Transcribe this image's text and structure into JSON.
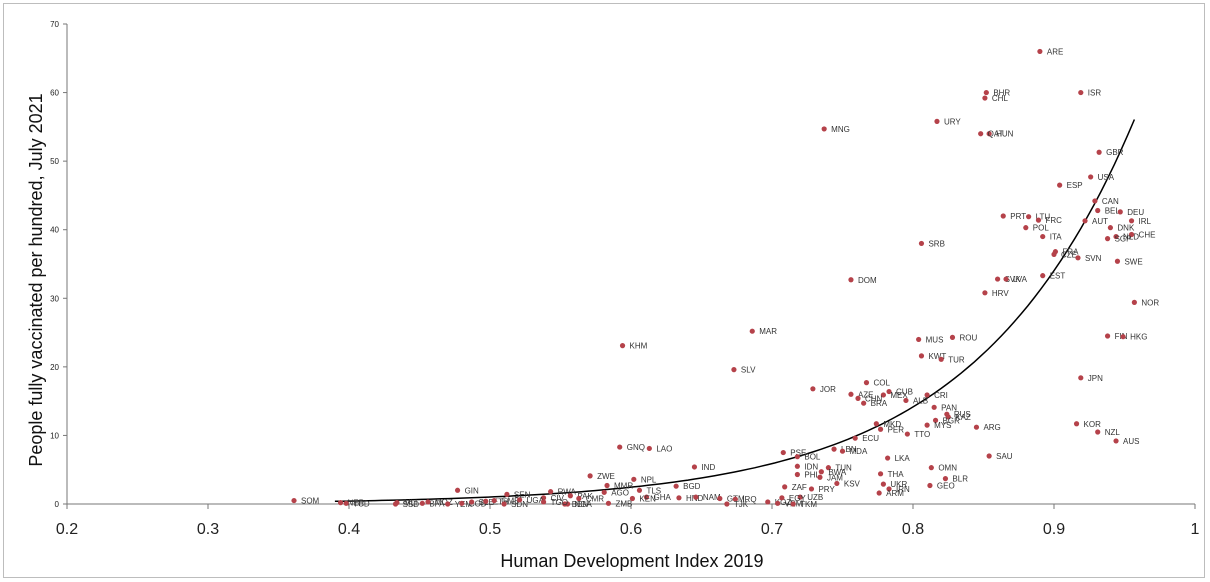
{
  "chart_data": {
    "type": "scatter",
    "title": "",
    "xlabel": "Human Development Index 2019",
    "ylabel": "People fully vaccinated per hundred, July 2021",
    "xlim": [
      0.2,
      1
    ],
    "ylim": [
      0,
      70
    ],
    "x_ticks": [
      "0.2",
      "0.3",
      "0.4",
      "0.5",
      "0.6",
      "0.7",
      "0.8",
      "0.9",
      "1"
    ],
    "y_ticks": [
      "0",
      "10",
      "20",
      "30",
      "40",
      "50",
      "60",
      "70"
    ],
    "grid": false,
    "legend": "none",
    "marker_color": "#b5424a",
    "trendline": {
      "type": "exponential",
      "a": 0.0127,
      "b": 8.77,
      "x_range": [
        0.39,
        0.957
      ]
    },
    "points": [
      {
        "label": "ARE",
        "x": 0.89,
        "y": 66.0
      },
      {
        "label": "BHR",
        "x": 0.852,
        "y": 60.0
      },
      {
        "label": "ISR",
        "x": 0.919,
        "y": 60.0
      },
      {
        "label": "CHL",
        "x": 0.851,
        "y": 59.2
      },
      {
        "label": "URY",
        "x": 0.817,
        "y": 55.8
      },
      {
        "label": "MNG",
        "x": 0.737,
        "y": 54.7
      },
      {
        "label": "HUN",
        "x": 0.854,
        "y": 54.0
      },
      {
        "label": "QAT",
        "x": 0.848,
        "y": 54.0
      },
      {
        "label": "GBR",
        "x": 0.932,
        "y": 51.3
      },
      {
        "label": "USA",
        "x": 0.926,
        "y": 47.7
      },
      {
        "label": "ESP",
        "x": 0.904,
        "y": 46.5
      },
      {
        "label": "CAN",
        "x": 0.929,
        "y": 44.2
      },
      {
        "label": "BEL",
        "x": 0.931,
        "y": 42.8
      },
      {
        "label": "DEU",
        "x": 0.947,
        "y": 42.6
      },
      {
        "label": "PRT",
        "x": 0.864,
        "y": 42.0
      },
      {
        "label": "LTU",
        "x": 0.882,
        "y": 41.9
      },
      {
        "label": "FRC",
        "x": 0.889,
        "y": 41.4
      },
      {
        "label": "AUT",
        "x": 0.922,
        "y": 41.3
      },
      {
        "label": "IRL",
        "x": 0.955,
        "y": 41.3
      },
      {
        "label": "POL",
        "x": 0.88,
        "y": 40.3
      },
      {
        "label": "DNK",
        "x": 0.94,
        "y": 40.3
      },
      {
        "label": "ITA",
        "x": 0.892,
        "y": 39.0
      },
      {
        "label": "NLD",
        "x": 0.944,
        "y": 39.0
      },
      {
        "label": "CHE",
        "x": 0.955,
        "y": 39.3
      },
      {
        "label": "SGP",
        "x": 0.938,
        "y": 38.7
      },
      {
        "label": "SRB",
        "x": 0.806,
        "y": 38.0
      },
      {
        "label": "FRA",
        "x": 0.901,
        "y": 36.8
      },
      {
        "label": "CZE",
        "x": 0.9,
        "y": 36.4
      },
      {
        "label": "SVN",
        "x": 0.917,
        "y": 35.9
      },
      {
        "label": "SWE",
        "x": 0.945,
        "y": 35.4
      },
      {
        "label": "EST",
        "x": 0.892,
        "y": 33.3
      },
      {
        "label": "SVK",
        "x": 0.86,
        "y": 32.8
      },
      {
        "label": "LVA",
        "x": 0.866,
        "y": 32.8
      },
      {
        "label": "DOM",
        "x": 0.756,
        "y": 32.7
      },
      {
        "label": "HRV",
        "x": 0.851,
        "y": 30.8
      },
      {
        "label": "NOR",
        "x": 0.957,
        "y": 29.4
      },
      {
        "label": "MAR",
        "x": 0.686,
        "y": 25.2
      },
      {
        "label": "ROU",
        "x": 0.828,
        "y": 24.3
      },
      {
        "label": "MUS",
        "x": 0.804,
        "y": 24.0
      },
      {
        "label": "FIN",
        "x": 0.938,
        "y": 24.5
      },
      {
        "label": "HKG",
        "x": 0.949,
        "y": 24.4
      },
      {
        "label": "KHM",
        "x": 0.594,
        "y": 23.1
      },
      {
        "label": "KWT",
        "x": 0.806,
        "y": 21.6
      },
      {
        "label": "TUR",
        "x": 0.82,
        "y": 21.1
      },
      {
        "label": "SLV",
        "x": 0.673,
        "y": 19.6
      },
      {
        "label": "JPN",
        "x": 0.919,
        "y": 18.4
      },
      {
        "label": "COL",
        "x": 0.767,
        "y": 17.7
      },
      {
        "label": "JOR",
        "x": 0.729,
        "y": 16.8
      },
      {
        "label": "CUB",
        "x": 0.783,
        "y": 16.4
      },
      {
        "label": "AZE",
        "x": 0.756,
        "y": 16.0
      },
      {
        "label": "MEX",
        "x": 0.779,
        "y": 15.9
      },
      {
        "label": "CRI",
        "x": 0.81,
        "y": 15.9
      },
      {
        "label": "CHN",
        "x": 0.761,
        "y": 15.4
      },
      {
        "label": "ALB",
        "x": 0.795,
        "y": 15.1
      },
      {
        "label": "BRA",
        "x": 0.765,
        "y": 14.7
      },
      {
        "label": "PAN",
        "x": 0.815,
        "y": 14.1
      },
      {
        "label": "RUS",
        "x": 0.824,
        "y": 13.1
      },
      {
        "label": "KAZ",
        "x": 0.825,
        "y": 12.7
      },
      {
        "label": "BGR",
        "x": 0.816,
        "y": 12.2
      },
      {
        "label": "KOR",
        "x": 0.916,
        "y": 11.7
      },
      {
        "label": "MKD",
        "x": 0.774,
        "y": 11.7
      },
      {
        "label": "MYS",
        "x": 0.81,
        "y": 11.5
      },
      {
        "label": "ARG",
        "x": 0.845,
        "y": 11.2
      },
      {
        "label": "PER",
        "x": 0.777,
        "y": 10.9
      },
      {
        "label": "NZL",
        "x": 0.931,
        "y": 10.5
      },
      {
        "label": "TTO",
        "x": 0.796,
        "y": 10.2
      },
      {
        "label": "ECU",
        "x": 0.759,
        "y": 9.6
      },
      {
        "label": "AUS",
        "x": 0.944,
        "y": 9.2
      },
      {
        "label": "GNQ",
        "x": 0.592,
        "y": 8.3
      },
      {
        "label": "LAO",
        "x": 0.613,
        "y": 8.1
      },
      {
        "label": "LBN",
        "x": 0.744,
        "y": 8.0
      },
      {
        "label": "MDA",
        "x": 0.75,
        "y": 7.7
      },
      {
        "label": "PSE",
        "x": 0.708,
        "y": 7.5
      },
      {
        "label": "SAU",
        "x": 0.854,
        "y": 7.0
      },
      {
        "label": "BOL",
        "x": 0.718,
        "y": 6.9
      },
      {
        "label": "LKA",
        "x": 0.782,
        "y": 6.7
      },
      {
        "label": "IND",
        "x": 0.645,
        "y": 5.4
      },
      {
        "label": "IDN",
        "x": 0.718,
        "y": 5.5
      },
      {
        "label": "TUN",
        "x": 0.74,
        "y": 5.3
      },
      {
        "label": "OMN",
        "x": 0.813,
        "y": 5.3
      },
      {
        "label": "BWA",
        "x": 0.735,
        "y": 4.7
      },
      {
        "label": "PHL",
        "x": 0.718,
        "y": 4.3
      },
      {
        "label": "THA",
        "x": 0.777,
        "y": 4.4
      },
      {
        "label": "ZWE",
        "x": 0.571,
        "y": 4.1
      },
      {
        "label": "JAM",
        "x": 0.734,
        "y": 3.9
      },
      {
        "label": "BLR",
        "x": 0.823,
        "y": 3.7
      },
      {
        "label": "NPL",
        "x": 0.602,
        "y": 3.6
      },
      {
        "label": "KSV",
        "x": 0.746,
        "y": 3.0
      },
      {
        "label": "UKR",
        "x": 0.779,
        "y": 2.9
      },
      {
        "label": "GEO",
        "x": 0.812,
        "y": 2.7
      },
      {
        "label": "ZAF",
        "x": 0.709,
        "y": 2.5
      },
      {
        "label": "MMR",
        "x": 0.583,
        "y": 2.7
      },
      {
        "label": "BGD",
        "x": 0.632,
        "y": 2.6
      },
      {
        "label": "PRY",
        "x": 0.728,
        "y": 2.2
      },
      {
        "label": "IRN",
        "x": 0.783,
        "y": 2.2
      },
      {
        "label": "TLS",
        "x": 0.606,
        "y": 2.0
      },
      {
        "label": "GIN",
        "x": 0.477,
        "y": 2.0
      },
      {
        "label": "ARM",
        "x": 0.776,
        "y": 1.6
      },
      {
        "label": "RWA",
        "x": 0.543,
        "y": 1.8
      },
      {
        "label": "AGO",
        "x": 0.581,
        "y": 1.7
      },
      {
        "label": "SEN",
        "x": 0.512,
        "y": 1.4
      },
      {
        "label": "PAK",
        "x": 0.557,
        "y": 1.2
      },
      {
        "label": "HND",
        "x": 0.634,
        "y": 0.9
      },
      {
        "label": "NAM",
        "x": 0.646,
        "y": 1.0
      },
      {
        "label": "GHA",
        "x": 0.611,
        "y": 1.0
      },
      {
        "label": "KEN",
        "x": 0.601,
        "y": 0.8
      },
      {
        "label": "UZB",
        "x": 0.72,
        "y": 1.0
      },
      {
        "label": "GTM",
        "x": 0.663,
        "y": 0.8
      },
      {
        "label": "IRQ",
        "x": 0.674,
        "y": 0.7
      },
      {
        "label": "CMR",
        "x": 0.563,
        "y": 0.8
      },
      {
        "label": "CIV",
        "x": 0.538,
        "y": 0.9
      },
      {
        "label": "SOM",
        "x": 0.361,
        "y": 0.5
      },
      {
        "label": "NER",
        "x": 0.394,
        "y": 0.2
      },
      {
        "label": "TCD",
        "x": 0.398,
        "y": 0.1
      },
      {
        "label": "MLI",
        "x": 0.434,
        "y": 0.2
      },
      {
        "label": "SSD",
        "x": 0.433,
        "y": 0.0
      },
      {
        "label": "BFA",
        "x": 0.452,
        "y": 0.1
      },
      {
        "label": "MOZ",
        "x": 0.456,
        "y": 0.3
      },
      {
        "label": "YEM",
        "x": 0.47,
        "y": 0.0
      },
      {
        "label": "COD",
        "x": 0.48,
        "y": 0.1
      },
      {
        "label": "SLE",
        "x": 0.487,
        "y": 0.3
      },
      {
        "label": "ETH",
        "x": 0.497,
        "y": 0.4
      },
      {
        "label": "GMB",
        "x": 0.503,
        "y": 0.5
      },
      {
        "label": "SDN",
        "x": 0.51,
        "y": 0.0
      },
      {
        "label": "UGA",
        "x": 0.521,
        "y": 0.6
      },
      {
        "label": "BEN",
        "x": 0.553,
        "y": 0.0
      },
      {
        "label": "NGA",
        "x": 0.555,
        "y": 0.0
      },
      {
        "label": "TGO",
        "x": 0.538,
        "y": 0.3
      },
      {
        "label": "ZMB",
        "x": 0.584,
        "y": 0.1
      },
      {
        "label": "TJK",
        "x": 0.668,
        "y": 0.0
      },
      {
        "label": "KGZ",
        "x": 0.697,
        "y": 0.3
      },
      {
        "label": "VNM",
        "x": 0.704,
        "y": 0.1
      },
      {
        "label": "EGY",
        "x": 0.707,
        "y": 0.9
      },
      {
        "label": "TKM",
        "x": 0.715,
        "y": 0.0
      }
    ]
  }
}
